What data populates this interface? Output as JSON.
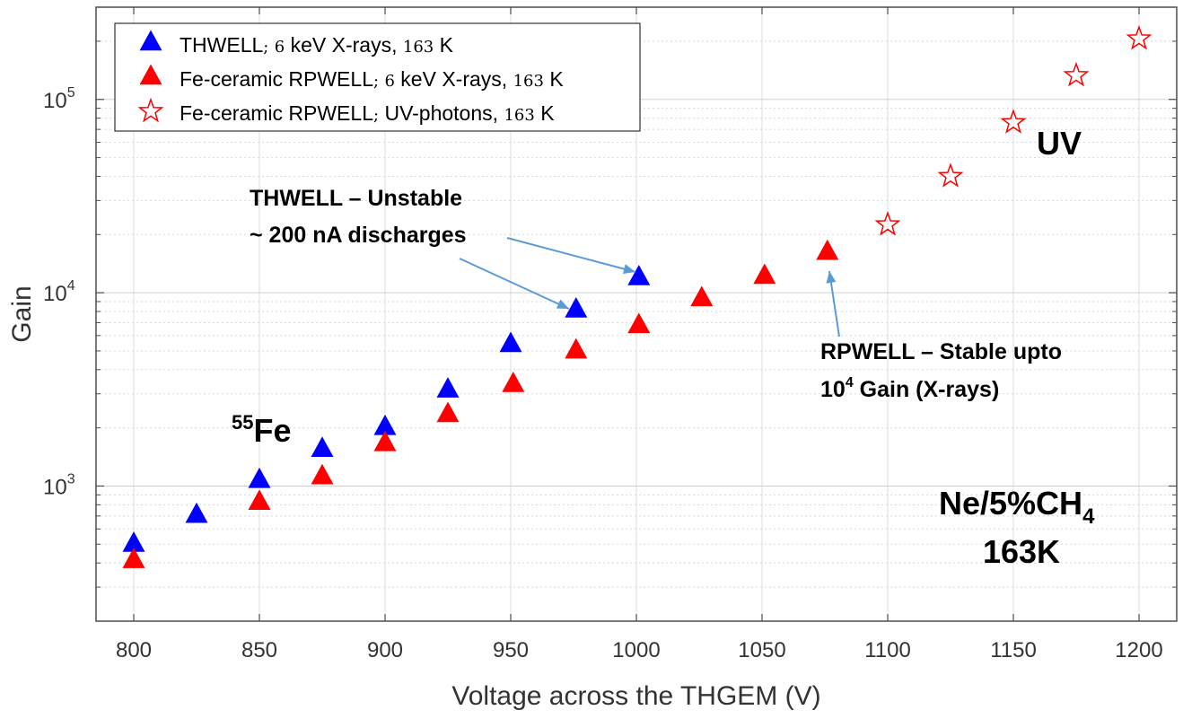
{
  "chart_data": {
    "type": "scatter",
    "xlabel": "Voltage across the THGEM (V)",
    "ylabel": "Gain",
    "xlim": [
      785,
      1215
    ],
    "ylim": [
      200,
      300000
    ],
    "yscale": "log",
    "xticks": [
      800,
      850,
      900,
      950,
      1000,
      1050,
      1100,
      1150,
      1200
    ],
    "xtick_labels": [
      "800",
      "850",
      "900",
      "950",
      "1000",
      "1050",
      "1100",
      "1150",
      "1200"
    ],
    "ytick_labels": [
      {
        "base": "10",
        "exp": "3",
        "value": 1000
      },
      {
        "base": "10",
        "exp": "4",
        "value": 10000
      },
      {
        "base": "10",
        "exp": "5",
        "value": 100000
      }
    ],
    "grid": true,
    "legend_position": "top-left",
    "series": [
      {
        "name": "THWELL; 6 keV X-rays, 163 K",
        "label_main": "THWELL",
        "label_sep": ";",
        "label_mid": "6",
        "label_unit": "keV X-rays,",
        "label_temp": "163",
        "label_temp_unit": "K",
        "marker": "triangle-filled",
        "color": "#0000ff",
        "x": [
          800,
          825,
          850,
          875,
          900,
          925,
          950,
          976,
          1001
        ],
        "y": [
          510,
          720,
          1090,
          1580,
          2050,
          3200,
          5500,
          8300,
          12200
        ]
      },
      {
        "name": "Fe-ceramic RPWELL; 6 keV X-rays, 163 K",
        "label_main": "Fe-ceramic RPWELL",
        "label_sep": ";",
        "label_mid": "6",
        "label_unit": "keV X-rays,",
        "label_temp": "163",
        "label_temp_unit": "K",
        "marker": "triangle-filled",
        "color": "#ff0000",
        "x": [
          800,
          850,
          875,
          900,
          925,
          951,
          976,
          1001,
          1026,
          1051,
          1076
        ],
        "y": [
          420,
          840,
          1140,
          1690,
          2390,
          3420,
          5100,
          6900,
          9500,
          12400,
          16500
        ]
      },
      {
        "name": "Fe-ceramic RPWELL; UV-photons, 163 K",
        "label_main": "Fe-ceramic RPWELL",
        "label_sep": ";",
        "label_mid": "",
        "label_unit": "UV-photons,",
        "label_temp": "163",
        "label_temp_unit": "K",
        "marker": "star-open",
        "color": "#ff0000",
        "x": [
          1100,
          1125,
          1150,
          1175,
          1200
        ],
        "y": [
          22500,
          40000,
          76000,
          133000,
          206000
        ]
      }
    ],
    "annotations": {
      "uv": "UV",
      "thwell_line1": "THWELL – Unstable",
      "thwell_line2": "~ 200 nA discharges",
      "rpwell_line1": "RPWELL – Stable upto",
      "rpwell_line2_base": "10",
      "rpwell_line2_exp": "4",
      "rpwell_line2_rest": " Gain (X-rays)",
      "fe_sup": "55",
      "fe_base": "Fe",
      "gas_base": "Ne/5%CH",
      "gas_sub": "4",
      "gas_temp": "163K",
      "arrow_color": "#5b9bd5"
    }
  }
}
